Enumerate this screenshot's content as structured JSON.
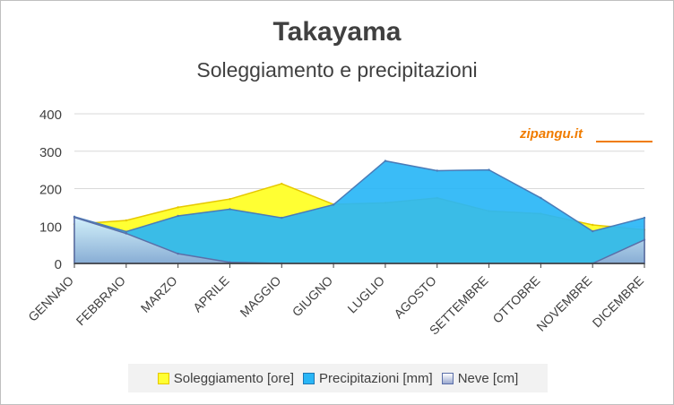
{
  "chart_data": {
    "type": "area",
    "title": "Takayama",
    "subtitle": "Soleggiamento e precipitazioni",
    "watermark": "zipangu.it",
    "categories": [
      "GENNAIO",
      "FEBBRAIO",
      "MARZO",
      "APRILE",
      "MAGGIO",
      "GIUGNO",
      "LUGLIO",
      "AGOSTO",
      "SETTEMBRE",
      "OTTOBRE",
      "NOVEMBRE",
      "DICEMBRE"
    ],
    "yticks": [
      0,
      100,
      200,
      300,
      400
    ],
    "ylim": [
      0,
      400
    ],
    "grid": true,
    "legend_position": "bottom",
    "series": [
      {
        "name": "Soleggiamento [ore]",
        "color": "#ffff33",
        "stroke": "#e6c800",
        "values": [
          105,
          115,
          150,
          172,
          213,
          158,
          162,
          175,
          140,
          133,
          103,
          90
        ]
      },
      {
        "name": "Precipitazioni [mm]",
        "color": "#29b6f6",
        "stroke": "#4a7bb7",
        "values": [
          125,
          85,
          127,
          145,
          122,
          157,
          274,
          248,
          250,
          175,
          86,
          122
        ]
      },
      {
        "name": "Neve [cm]",
        "color": "#b8c4e4",
        "stroke": "#5b6fa8",
        "values": [
          123,
          80,
          26,
          3,
          0,
          0,
          0,
          0,
          0,
          0,
          0,
          63
        ]
      }
    ]
  }
}
